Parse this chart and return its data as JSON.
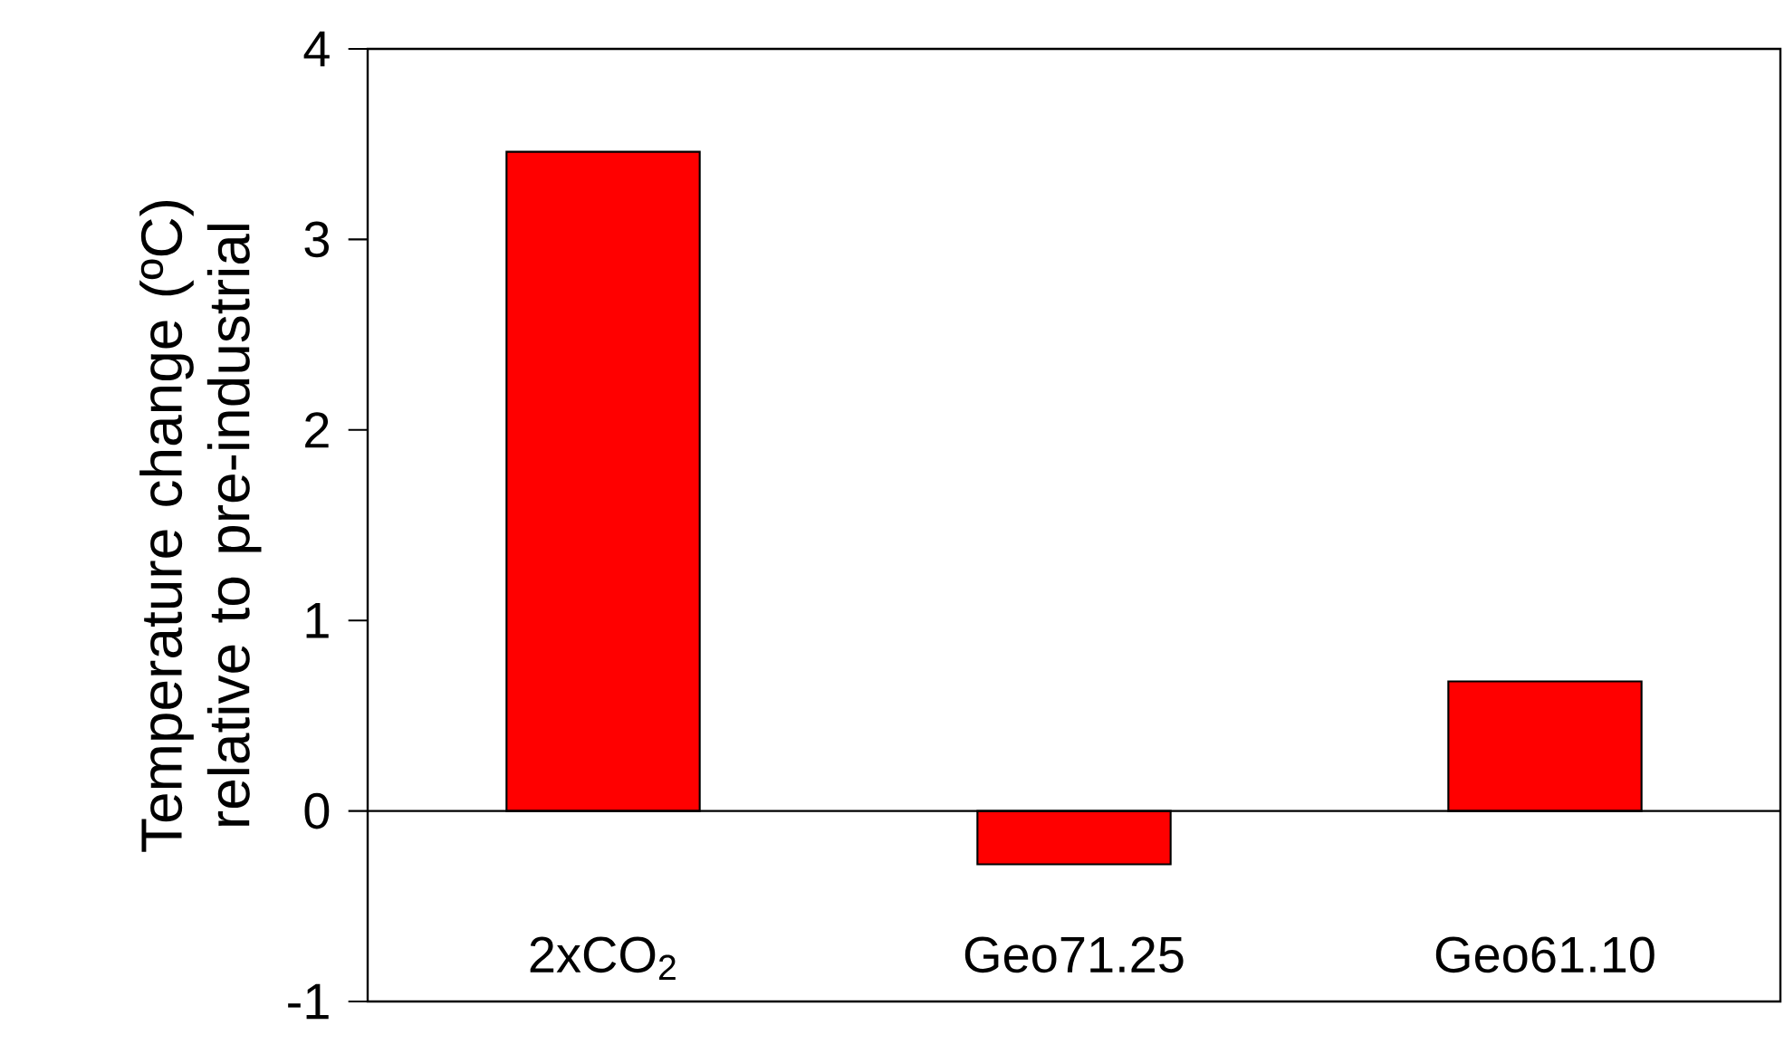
{
  "chart_data": {
    "type": "bar",
    "ylabel": "Temperature change (ºC) relative to pre-industrial",
    "categories": [
      "2xCO$_{2}$",
      "Geo71.25",
      "Geo61.10"
    ],
    "values": [
      3.46,
      -0.28,
      0.68
    ],
    "color": "#ff0000",
    "ylim": [
      -1,
      4
    ],
    "yticks": [
      -1,
      0,
      1,
      2,
      3,
      4
    ]
  }
}
